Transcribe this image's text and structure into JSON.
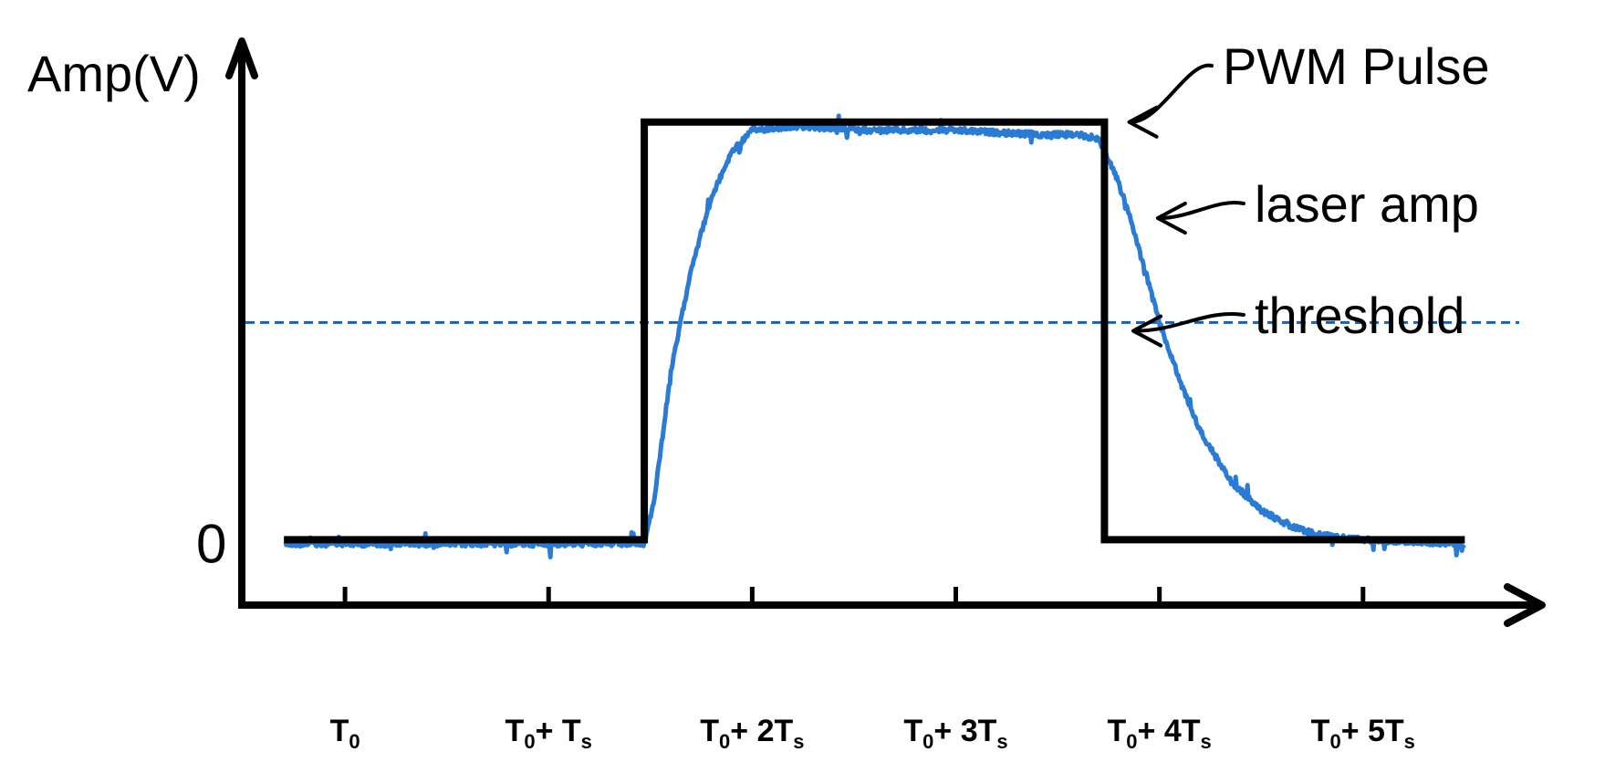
{
  "chart_data": {
    "type": "line",
    "ylabel": "Amp(V)",
    "y_tick_labels": [
      "0"
    ],
    "x_ticks": [
      {
        "main": "T",
        "sub": "0",
        "rest": "",
        "rest_sub": "",
        "x": 0
      },
      {
        "main": "T",
        "sub": "0",
        "rest": "+ T",
        "rest_sub": "s",
        "x": 1
      },
      {
        "main": "T",
        "sub": "0",
        "rest": "+ 2T",
        "rest_sub": "s",
        "x": 2
      },
      {
        "main": "T",
        "sub": "0",
        "rest": "+ 3T",
        "rest_sub": "s",
        "x": 3
      },
      {
        "main": "T",
        "sub": "0",
        "rest": "+ 4T",
        "rest_sub": "s",
        "x": 4
      },
      {
        "main": "T",
        "sub": "0",
        "rest": "+ 5T",
        "rest_sub": "s",
        "x": 5
      }
    ],
    "xlim": [
      -0.35,
      5.7
    ],
    "ylim": [
      -0.15,
      1.1
    ],
    "threshold": {
      "y": 0.52,
      "color": "#1f5fa8",
      "dashed": true
    },
    "series": [
      {
        "label": "pwm",
        "color": "#000000",
        "style": "step",
        "x": [
          -0.3,
          1.47,
          1.47,
          3.73,
          3.73,
          5.5
        ],
        "y": [
          0,
          0,
          1.0,
          1.0,
          0,
          0
        ]
      },
      {
        "label": "laser",
        "color": "#2a7bd4",
        "style": "noisy",
        "x": [
          -0.3,
          1.47,
          1.52,
          1.6,
          1.7,
          1.8,
          1.9,
          2.0,
          2.2,
          2.6,
          3.0,
          3.4,
          3.6,
          3.7,
          3.78,
          3.85,
          3.92,
          4.0,
          4.1,
          4.2,
          4.35,
          4.5,
          4.65,
          4.8,
          5.0,
          5.5
        ],
        "y": [
          -0.01,
          -0.01,
          0.1,
          0.4,
          0.65,
          0.82,
          0.93,
          0.98,
          0.99,
          0.98,
          0.98,
          0.97,
          0.97,
          0.96,
          0.88,
          0.78,
          0.66,
          0.52,
          0.38,
          0.26,
          0.14,
          0.07,
          0.03,
          0.01,
          0.0,
          -0.01
        ]
      }
    ],
    "annotations": [
      {
        "text": "PWM Pulse",
        "target_x": 3.78,
        "target_y": 1.0
      },
      {
        "text": "laser amp",
        "target_x": 3.92,
        "target_y": 0.77
      },
      {
        "text": "threshold",
        "target_x": 3.8,
        "target_y": 0.5
      }
    ]
  }
}
